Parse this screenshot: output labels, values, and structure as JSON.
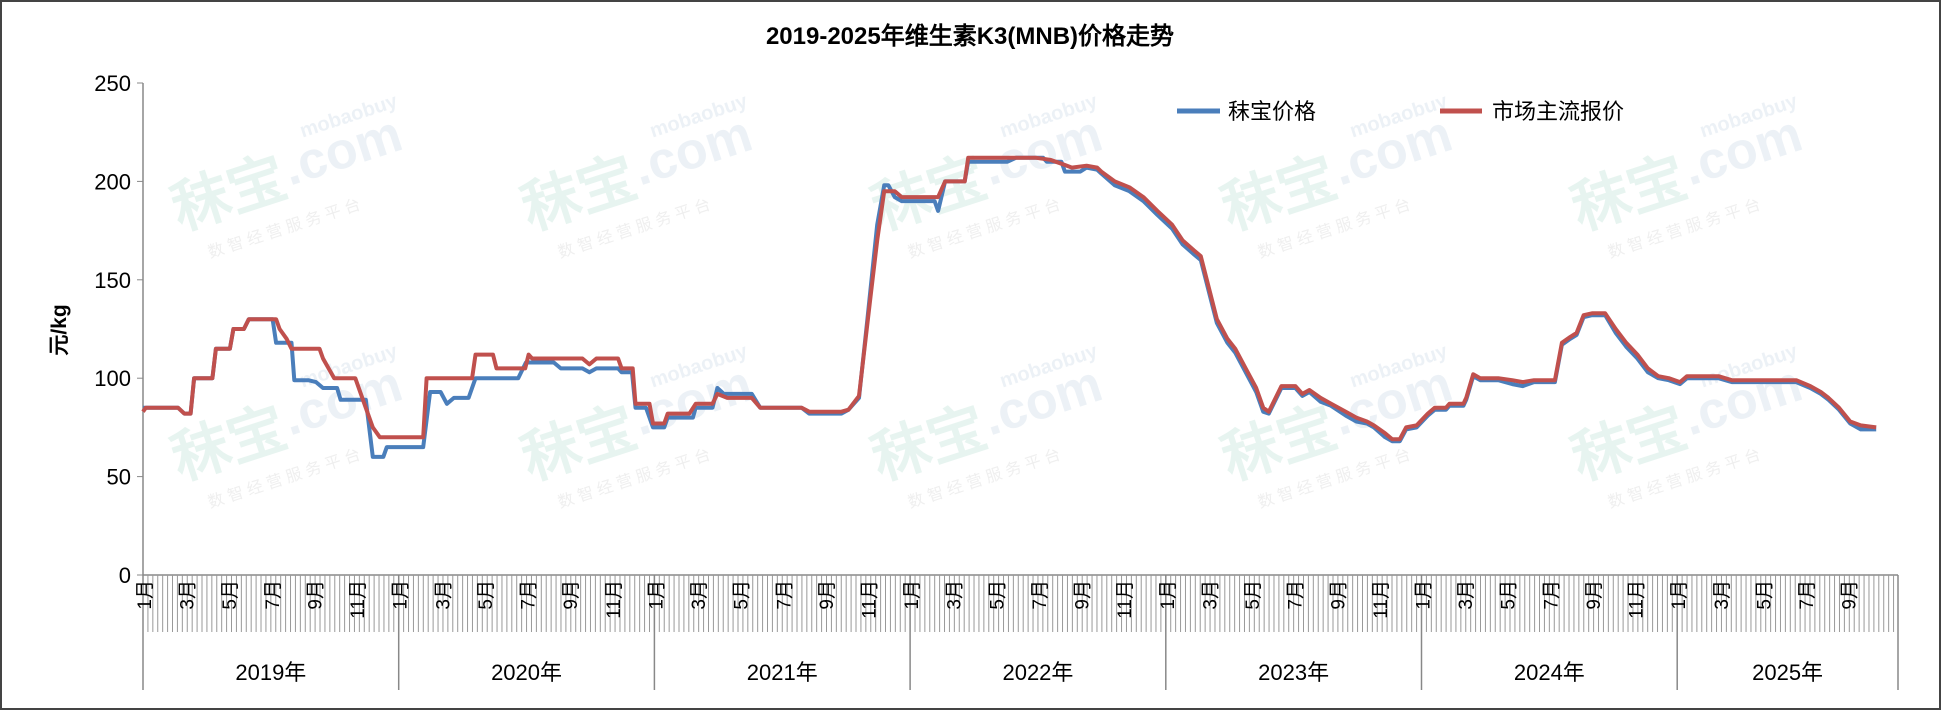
{
  "chart_data": {
    "type": "line",
    "title": "2019-2025年维生素K3(MNB)价格走势",
    "ylabel": "元/kg",
    "xlabel": "",
    "ylim": [
      0,
      250
    ],
    "yticks": [
      0,
      50,
      100,
      150,
      200,
      250
    ],
    "xlim": [
      "2019-01-01",
      "2025-11-20"
    ],
    "month_labels": [
      "1月",
      "3月",
      "5月",
      "7月",
      "9月",
      "11月"
    ],
    "year_labels": [
      "2019年",
      "2020年",
      "2021年",
      "2022年",
      "2023年",
      "2024年",
      "2025年"
    ],
    "legend_position": "top-right",
    "grid": false,
    "watermark": {
      "brand": "秣宝",
      "domain": ".com",
      "site": "mobaobuy",
      "slogan": "数 智 经 营 服 务 平 台"
    },
    "series": [
      {
        "name": "秣宝价格",
        "color": "#4a7ebb",
        "points": [
          [
            "2019-01-01",
            85
          ],
          [
            "2019-02-20",
            85
          ],
          [
            "2019-03-01",
            82
          ],
          [
            "2019-03-10",
            82
          ],
          [
            "2019-03-15",
            100
          ],
          [
            "2019-04-10",
            100
          ],
          [
            "2019-04-15",
            115
          ],
          [
            "2019-05-05",
            115
          ],
          [
            "2019-05-10",
            125
          ],
          [
            "2019-05-25",
            125
          ],
          [
            "2019-06-01",
            130
          ],
          [
            "2019-07-05",
            130
          ],
          [
            "2019-07-10",
            118
          ],
          [
            "2019-08-01",
            118
          ],
          [
            "2019-08-05",
            99
          ],
          [
            "2019-08-25",
            99
          ],
          [
            "2019-09-05",
            98
          ],
          [
            "2019-09-15",
            95
          ],
          [
            "2019-10-05",
            95
          ],
          [
            "2019-10-10",
            89
          ],
          [
            "2019-11-15",
            89
          ],
          [
            "2019-11-25",
            60
          ],
          [
            "2019-12-10",
            60
          ],
          [
            "2019-12-15",
            65
          ],
          [
            "2020-02-05",
            65
          ],
          [
            "2020-02-15",
            93
          ],
          [
            "2020-03-01",
            93
          ],
          [
            "2020-03-10",
            87
          ],
          [
            "2020-03-20",
            90
          ],
          [
            "2020-04-10",
            90
          ],
          [
            "2020-04-20",
            100
          ],
          [
            "2020-06-20",
            100
          ],
          [
            "2020-07-01",
            108
          ],
          [
            "2020-08-10",
            108
          ],
          [
            "2020-08-20",
            105
          ],
          [
            "2020-09-20",
            105
          ],
          [
            "2020-09-30",
            103
          ],
          [
            "2020-10-10",
            105
          ],
          [
            "2020-11-10",
            105
          ],
          [
            "2020-11-15",
            103
          ],
          [
            "2020-11-30",
            103
          ],
          [
            "2020-12-05",
            85
          ],
          [
            "2020-12-20",
            85
          ],
          [
            "2020-12-30",
            75
          ],
          [
            "2021-01-15",
            75
          ],
          [
            "2021-01-20",
            80
          ],
          [
            "2021-02-25",
            80
          ],
          [
            "2021-03-01",
            85
          ],
          [
            "2021-03-25",
            85
          ],
          [
            "2021-04-01",
            95
          ],
          [
            "2021-04-10",
            92
          ],
          [
            "2021-05-20",
            92
          ],
          [
            "2021-06-01",
            85
          ],
          [
            "2021-07-30",
            85
          ],
          [
            "2021-08-10",
            82
          ],
          [
            "2021-09-25",
            82
          ],
          [
            "2021-10-05",
            84
          ],
          [
            "2021-10-20",
            90
          ],
          [
            "2021-11-01",
            130
          ],
          [
            "2021-11-15",
            178
          ],
          [
            "2021-11-25",
            198
          ],
          [
            "2021-12-01",
            198
          ],
          [
            "2021-12-10",
            192
          ],
          [
            "2021-12-20",
            190
          ],
          [
            "2022-02-05",
            190
          ],
          [
            "2022-02-10",
            185
          ],
          [
            "2022-02-20",
            200
          ],
          [
            "2022-03-20",
            200
          ],
          [
            "2022-03-25",
            210
          ],
          [
            "2022-05-20",
            210
          ],
          [
            "2022-06-01",
            212
          ],
          [
            "2022-07-10",
            212
          ],
          [
            "2022-07-15",
            210
          ],
          [
            "2022-08-05",
            210
          ],
          [
            "2022-08-10",
            205
          ],
          [
            "2022-09-01",
            205
          ],
          [
            "2022-09-10",
            207
          ],
          [
            "2022-09-25",
            206
          ],
          [
            "2022-10-01",
            204
          ],
          [
            "2022-10-20",
            198
          ],
          [
            "2022-11-10",
            195
          ],
          [
            "2022-11-30",
            190
          ],
          [
            "2022-12-20",
            183
          ],
          [
            "2023-01-10",
            176
          ],
          [
            "2023-01-25",
            168
          ],
          [
            "2023-02-10",
            163
          ],
          [
            "2023-02-20",
            160
          ],
          [
            "2023-03-15",
            128
          ],
          [
            "2023-03-30",
            118
          ],
          [
            "2023-04-10",
            113
          ],
          [
            "2023-04-25",
            103
          ],
          [
            "2023-05-10",
            93
          ],
          [
            "2023-05-20",
            83
          ],
          [
            "2023-05-28",
            82
          ],
          [
            "2023-06-15",
            95
          ],
          [
            "2023-07-05",
            95
          ],
          [
            "2023-07-15",
            91
          ],
          [
            "2023-07-25",
            93
          ],
          [
            "2023-08-10",
            88
          ],
          [
            "2023-08-25",
            86
          ],
          [
            "2023-09-15",
            81
          ],
          [
            "2023-09-30",
            78
          ],
          [
            "2023-10-15",
            77
          ],
          [
            "2023-10-25",
            75
          ],
          [
            "2023-11-10",
            70
          ],
          [
            "2023-11-20",
            68
          ],
          [
            "2023-12-01",
            68
          ],
          [
            "2023-12-10",
            74
          ],
          [
            "2023-12-25",
            75
          ],
          [
            "2024-01-10",
            81
          ],
          [
            "2024-01-20",
            84
          ],
          [
            "2024-02-05",
            84
          ],
          [
            "2024-02-10",
            86
          ],
          [
            "2024-03-01",
            86
          ],
          [
            "2024-03-05",
            89
          ],
          [
            "2024-03-15",
            101
          ],
          [
            "2024-03-25",
            99
          ],
          [
            "2024-04-20",
            99
          ],
          [
            "2024-05-10",
            97
          ],
          [
            "2024-05-25",
            96
          ],
          [
            "2024-06-10",
            98
          ],
          [
            "2024-07-10",
            98
          ],
          [
            "2024-07-20",
            117
          ],
          [
            "2024-08-01",
            120
          ],
          [
            "2024-08-10",
            122
          ],
          [
            "2024-08-20",
            131
          ],
          [
            "2024-09-01",
            132
          ],
          [
            "2024-09-20",
            132
          ],
          [
            "2024-10-05",
            123
          ],
          [
            "2024-10-20",
            116
          ],
          [
            "2024-11-05",
            110
          ],
          [
            "2024-11-20",
            103
          ],
          [
            "2024-12-05",
            100
          ],
          [
            "2024-12-20",
            99
          ],
          [
            "2025-01-05",
            97
          ],
          [
            "2025-01-15",
            100
          ],
          [
            "2025-03-01",
            100
          ],
          [
            "2025-03-20",
            98
          ],
          [
            "2025-06-20",
            98
          ],
          [
            "2025-07-10",
            95
          ],
          [
            "2025-07-25",
            92
          ],
          [
            "2025-08-05",
            89
          ],
          [
            "2025-08-20",
            84
          ],
          [
            "2025-09-05",
            77
          ],
          [
            "2025-09-20",
            74
          ],
          [
            "2025-10-12",
            74
          ]
        ]
      },
      {
        "name": "市场主流报价",
        "color": "#c0504d",
        "points": [
          [
            "2019-01-01",
            83
          ],
          [
            "2019-01-05",
            85
          ],
          [
            "2019-02-20",
            85
          ],
          [
            "2019-03-01",
            82
          ],
          [
            "2019-03-10",
            82
          ],
          [
            "2019-03-15",
            100
          ],
          [
            "2019-04-10",
            100
          ],
          [
            "2019-04-15",
            115
          ],
          [
            "2019-05-05",
            115
          ],
          [
            "2019-05-10",
            125
          ],
          [
            "2019-05-25",
            125
          ],
          [
            "2019-06-01",
            130
          ],
          [
            "2019-07-10",
            130
          ],
          [
            "2019-07-15",
            125
          ],
          [
            "2019-07-25",
            120
          ],
          [
            "2019-08-01",
            115
          ],
          [
            "2019-09-10",
            115
          ],
          [
            "2019-09-15",
            110
          ],
          [
            "2019-10-01",
            100
          ],
          [
            "2019-10-31",
            100
          ],
          [
            "2019-11-10",
            90
          ],
          [
            "2019-11-25",
            75
          ],
          [
            "2019-12-05",
            70
          ],
          [
            "2020-02-05",
            70
          ],
          [
            "2020-02-10",
            100
          ],
          [
            "2020-04-15",
            100
          ],
          [
            "2020-04-20",
            112
          ],
          [
            "2020-05-15",
            112
          ],
          [
            "2020-05-20",
            105
          ],
          [
            "2020-06-30",
            105
          ],
          [
            "2020-07-05",
            112
          ],
          [
            "2020-07-10",
            110
          ],
          [
            "2020-09-20",
            110
          ],
          [
            "2020-09-30",
            107
          ],
          [
            "2020-10-10",
            110
          ],
          [
            "2020-11-10",
            110
          ],
          [
            "2020-11-15",
            105
          ],
          [
            "2020-12-01",
            105
          ],
          [
            "2020-12-05",
            87
          ],
          [
            "2020-12-25",
            87
          ],
          [
            "2020-12-30",
            77
          ],
          [
            "2021-01-15",
            77
          ],
          [
            "2021-01-20",
            82
          ],
          [
            "2021-02-20",
            82
          ],
          [
            "2021-03-01",
            87
          ],
          [
            "2021-03-25",
            87
          ],
          [
            "2021-04-01",
            92
          ],
          [
            "2021-04-15",
            90
          ],
          [
            "2021-05-20",
            90
          ],
          [
            "2021-06-01",
            85
          ],
          [
            "2021-07-30",
            85
          ],
          [
            "2021-08-10",
            83
          ],
          [
            "2021-09-25",
            83
          ],
          [
            "2021-10-05",
            84
          ],
          [
            "2021-10-20",
            91
          ],
          [
            "2021-11-05",
            140
          ],
          [
            "2021-11-15",
            170
          ],
          [
            "2021-11-25",
            195
          ],
          [
            "2021-12-10",
            195
          ],
          [
            "2021-12-20",
            192
          ],
          [
            "2022-02-10",
            192
          ],
          [
            "2022-02-20",
            200
          ],
          [
            "2022-03-20",
            200
          ],
          [
            "2022-03-25",
            212
          ],
          [
            "2022-06-30",
            212
          ],
          [
            "2022-07-20",
            211
          ],
          [
            "2022-08-05",
            209
          ],
          [
            "2022-08-20",
            207
          ],
          [
            "2022-09-10",
            208
          ],
          [
            "2022-09-25",
            207
          ],
          [
            "2022-10-01",
            205
          ],
          [
            "2022-10-20",
            200
          ],
          [
            "2022-11-10",
            197
          ],
          [
            "2022-11-30",
            192
          ],
          [
            "2022-12-20",
            185
          ],
          [
            "2023-01-10",
            178
          ],
          [
            "2023-01-25",
            170
          ],
          [
            "2023-02-10",
            165
          ],
          [
            "2023-02-20",
            162
          ],
          [
            "2023-03-15",
            130
          ],
          [
            "2023-03-30",
            120
          ],
          [
            "2023-04-10",
            115
          ],
          [
            "2023-04-25",
            105
          ],
          [
            "2023-05-10",
            95
          ],
          [
            "2023-05-20",
            85
          ],
          [
            "2023-05-28",
            83
          ],
          [
            "2023-06-15",
            96
          ],
          [
            "2023-07-05",
            96
          ],
          [
            "2023-07-15",
            92
          ],
          [
            "2023-07-25",
            94
          ],
          [
            "2023-08-10",
            90
          ],
          [
            "2023-08-25",
            87
          ],
          [
            "2023-09-15",
            83
          ],
          [
            "2023-09-30",
            80
          ],
          [
            "2023-10-15",
            78
          ],
          [
            "2023-10-25",
            76
          ],
          [
            "2023-11-10",
            72
          ],
          [
            "2023-11-20",
            69
          ],
          [
            "2023-12-01",
            69
          ],
          [
            "2023-12-10",
            75
          ],
          [
            "2023-12-25",
            76
          ],
          [
            "2024-01-10",
            82
          ],
          [
            "2024-01-20",
            85
          ],
          [
            "2024-02-05",
            85
          ],
          [
            "2024-02-10",
            87
          ],
          [
            "2024-03-01",
            87
          ],
          [
            "2024-03-05",
            90
          ],
          [
            "2024-03-15",
            102
          ],
          [
            "2024-03-25",
            100
          ],
          [
            "2024-04-20",
            100
          ],
          [
            "2024-05-10",
            99
          ],
          [
            "2024-05-25",
            98
          ],
          [
            "2024-06-10",
            99
          ],
          [
            "2024-07-10",
            99
          ],
          [
            "2024-07-20",
            118
          ],
          [
            "2024-08-01",
            121
          ],
          [
            "2024-08-10",
            123
          ],
          [
            "2024-08-20",
            132
          ],
          [
            "2024-09-01",
            133
          ],
          [
            "2024-09-20",
            133
          ],
          [
            "2024-10-05",
            125
          ],
          [
            "2024-10-20",
            118
          ],
          [
            "2024-11-05",
            112
          ],
          [
            "2024-11-20",
            105
          ],
          [
            "2024-12-05",
            101
          ],
          [
            "2024-12-20",
            100
          ],
          [
            "2025-01-05",
            98
          ],
          [
            "2025-01-15",
            101
          ],
          [
            "2025-03-01",
            101
          ],
          [
            "2025-03-20",
            99
          ],
          [
            "2025-06-20",
            99
          ],
          [
            "2025-07-10",
            96
          ],
          [
            "2025-07-25",
            93
          ],
          [
            "2025-08-05",
            90
          ],
          [
            "2025-08-20",
            85
          ],
          [
            "2025-09-05",
            78
          ],
          [
            "2025-09-20",
            76
          ],
          [
            "2025-10-12",
            75
          ]
        ]
      }
    ]
  }
}
